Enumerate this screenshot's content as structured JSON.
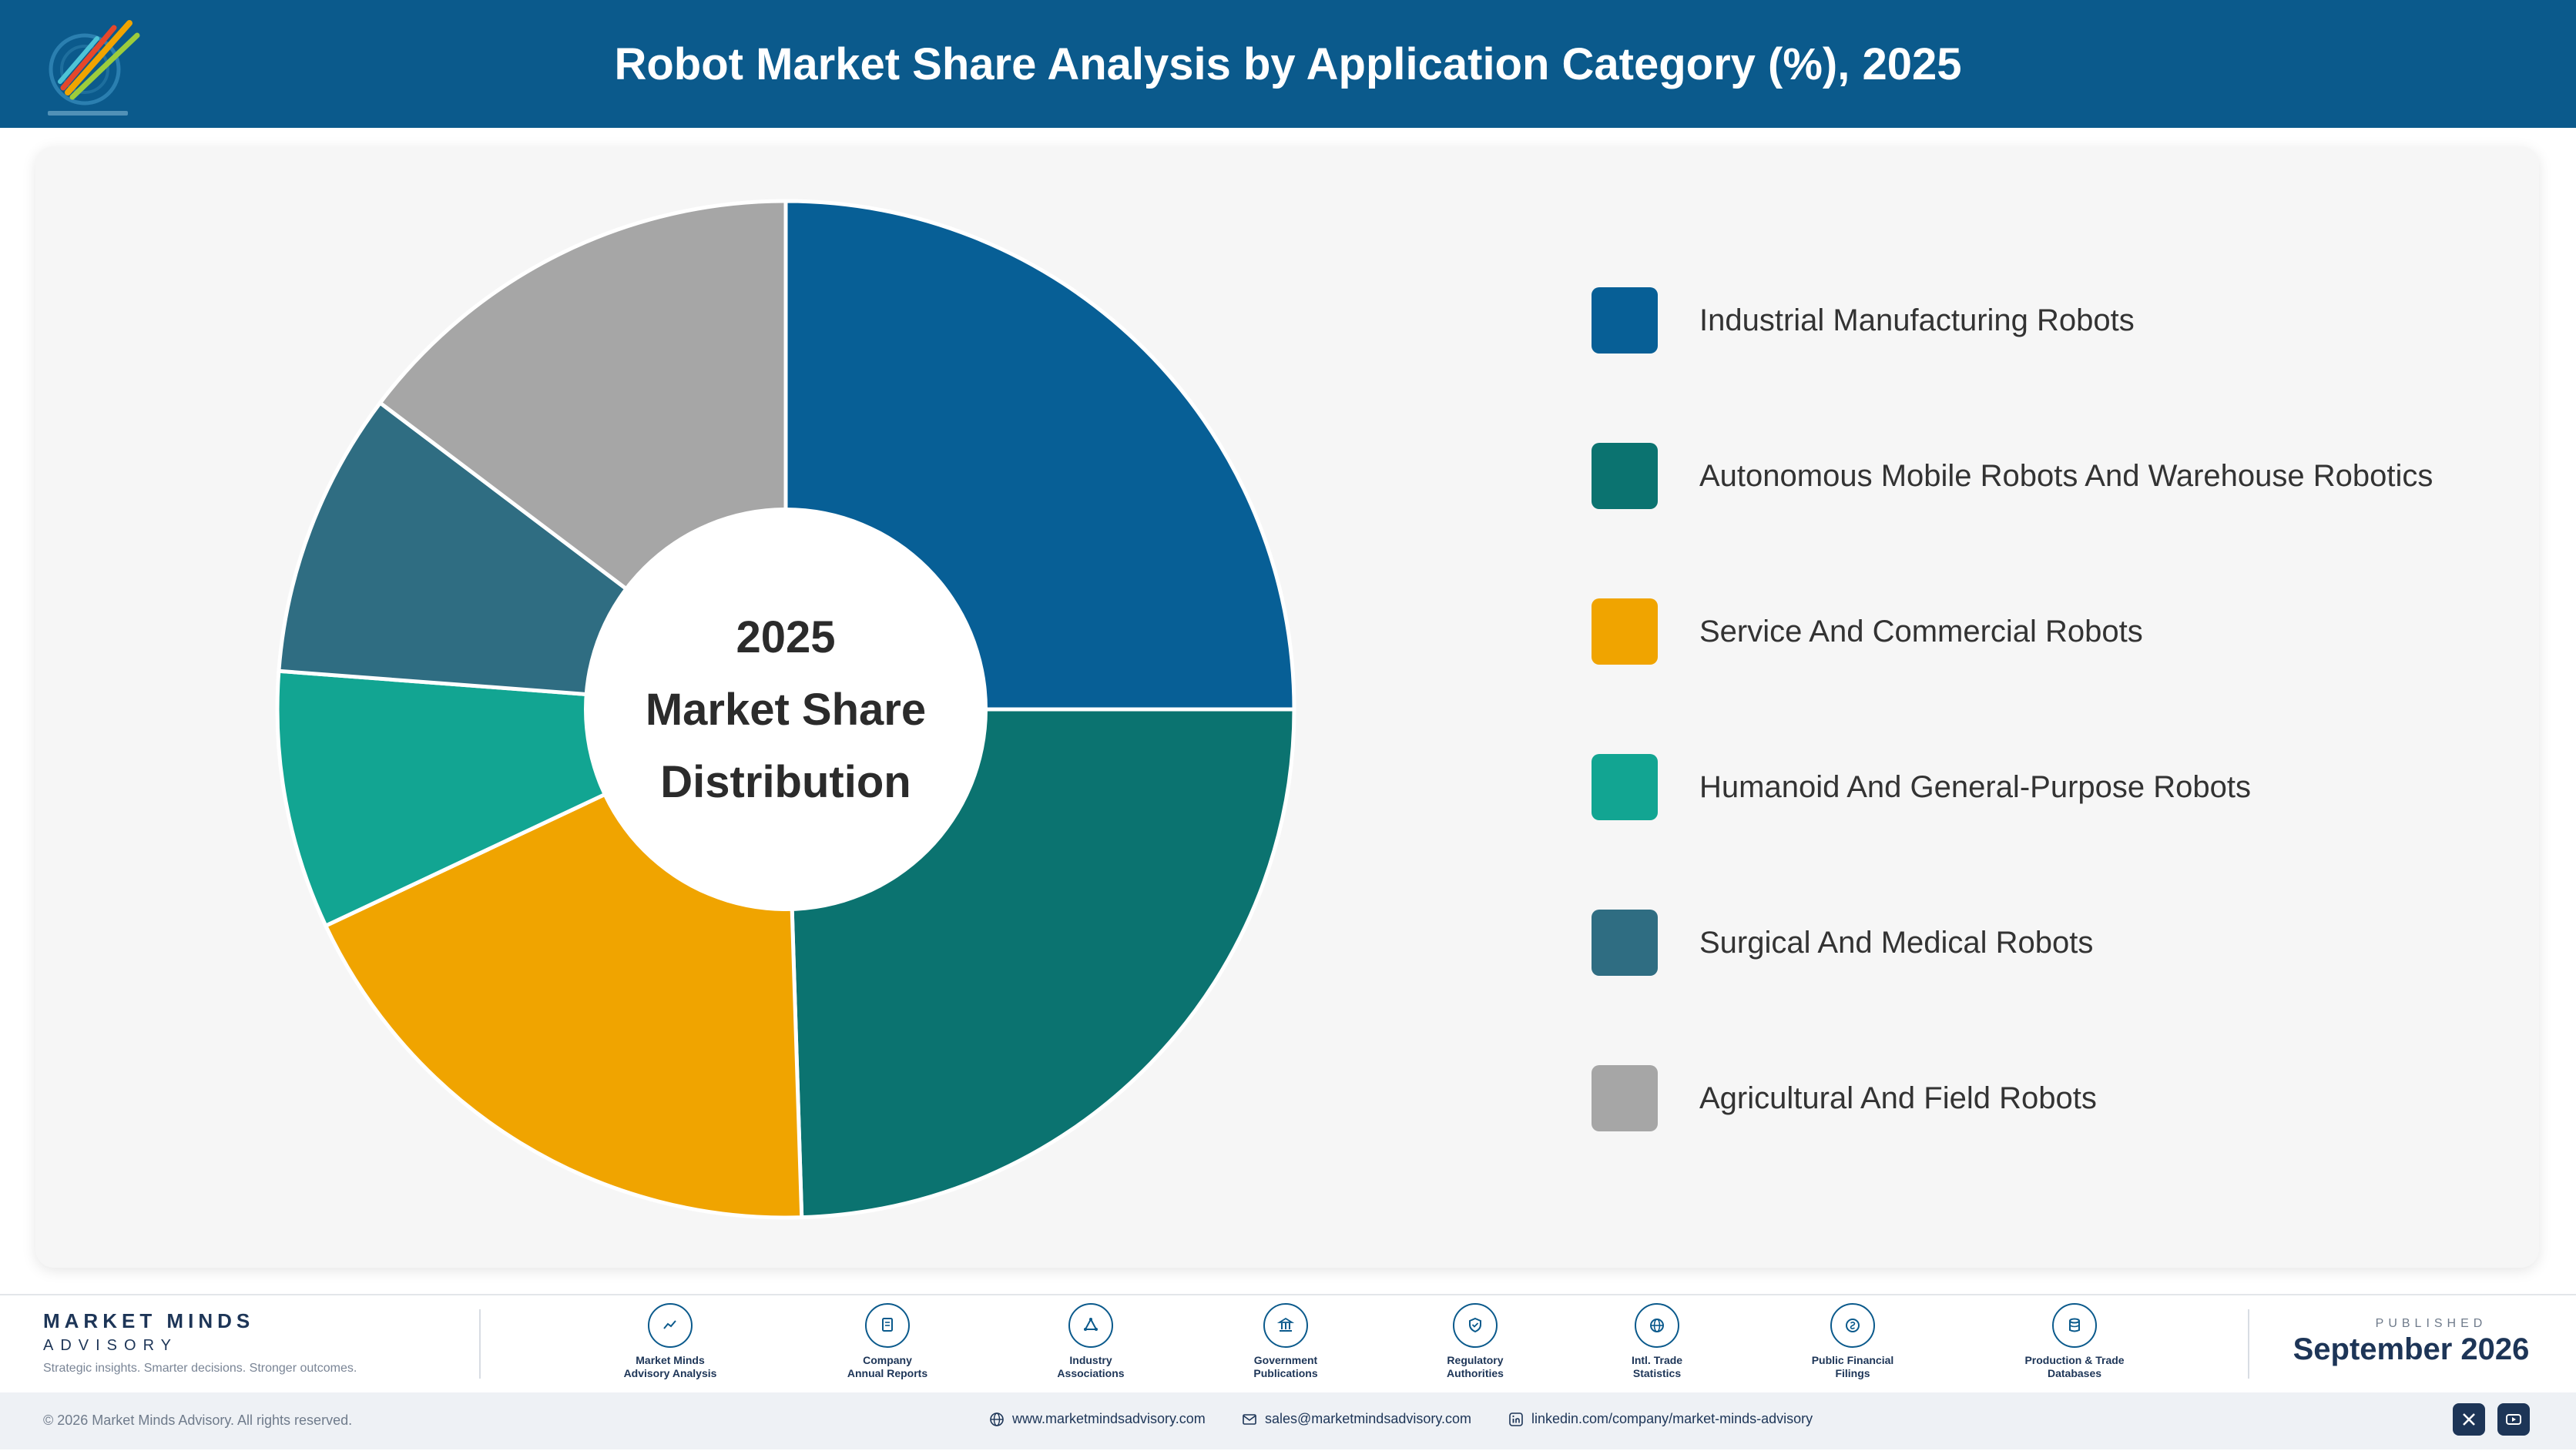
{
  "header": {
    "title": "Robot Market Share Analysis by Application Category (%), 2025"
  },
  "chart_data": {
    "type": "pie",
    "title": "Robot Market Share Analysis by Application Category (%), 2025",
    "center_label": [
      "2025",
      "Market Share",
      "Distribution"
    ],
    "categories": [
      "Industrial Manufacturing Robots",
      "Autonomous Mobile Robots And Warehouse Robotics",
      "Service And Commercial Robots",
      "Humanoid And General-Purpose Robots",
      "Surgical And Medical Robots",
      "Agricultural And Field Robots"
    ],
    "values": [
      25,
      24.5,
      18.5,
      8.2,
      9.1,
      14.7
    ],
    "colors": [
      "#075f96",
      "#0b7370",
      "#f0a400",
      "#12a592",
      "#2f6d82",
      "#a6a6a6"
    ],
    "legend_position": "right"
  },
  "footer": {
    "brand_name": "MARKET MINDS",
    "brand_sub": "ADVISORY",
    "tagline": "Strategic insights. Smarter decisions. Stronger outcomes.",
    "sources": [
      {
        "label1": "Market Minds",
        "label2": "Advisory Analysis",
        "icon": "trend-icon"
      },
      {
        "label1": "Company",
        "label2": "Annual Reports",
        "icon": "document-icon"
      },
      {
        "label1": "Industry",
        "label2": "Associations",
        "icon": "network-icon"
      },
      {
        "label1": "Government",
        "label2": "Publications",
        "icon": "building-icon"
      },
      {
        "label1": "Regulatory",
        "label2": "Authorities",
        "icon": "shield-icon"
      },
      {
        "label1": "Intl. Trade",
        "label2": "Statistics",
        "icon": "globe-icon"
      },
      {
        "label1": "Public Financial",
        "label2": "Filings",
        "icon": "coin-icon"
      },
      {
        "label1": "Production & Trade",
        "label2": "Databases",
        "icon": "database-icon"
      }
    ],
    "published_label": "PUBLISHED",
    "published_date": "September 2026",
    "copyright": "© 2026 Market Minds Advisory. All rights reserved.",
    "website": "www.marketmindsadvisory.com",
    "email": "sales@marketmindsadvisory.com",
    "linkedin": "linkedin.com/company/market-minds-advisory",
    "social_icons": [
      "x-icon",
      "youtube-icon"
    ]
  }
}
